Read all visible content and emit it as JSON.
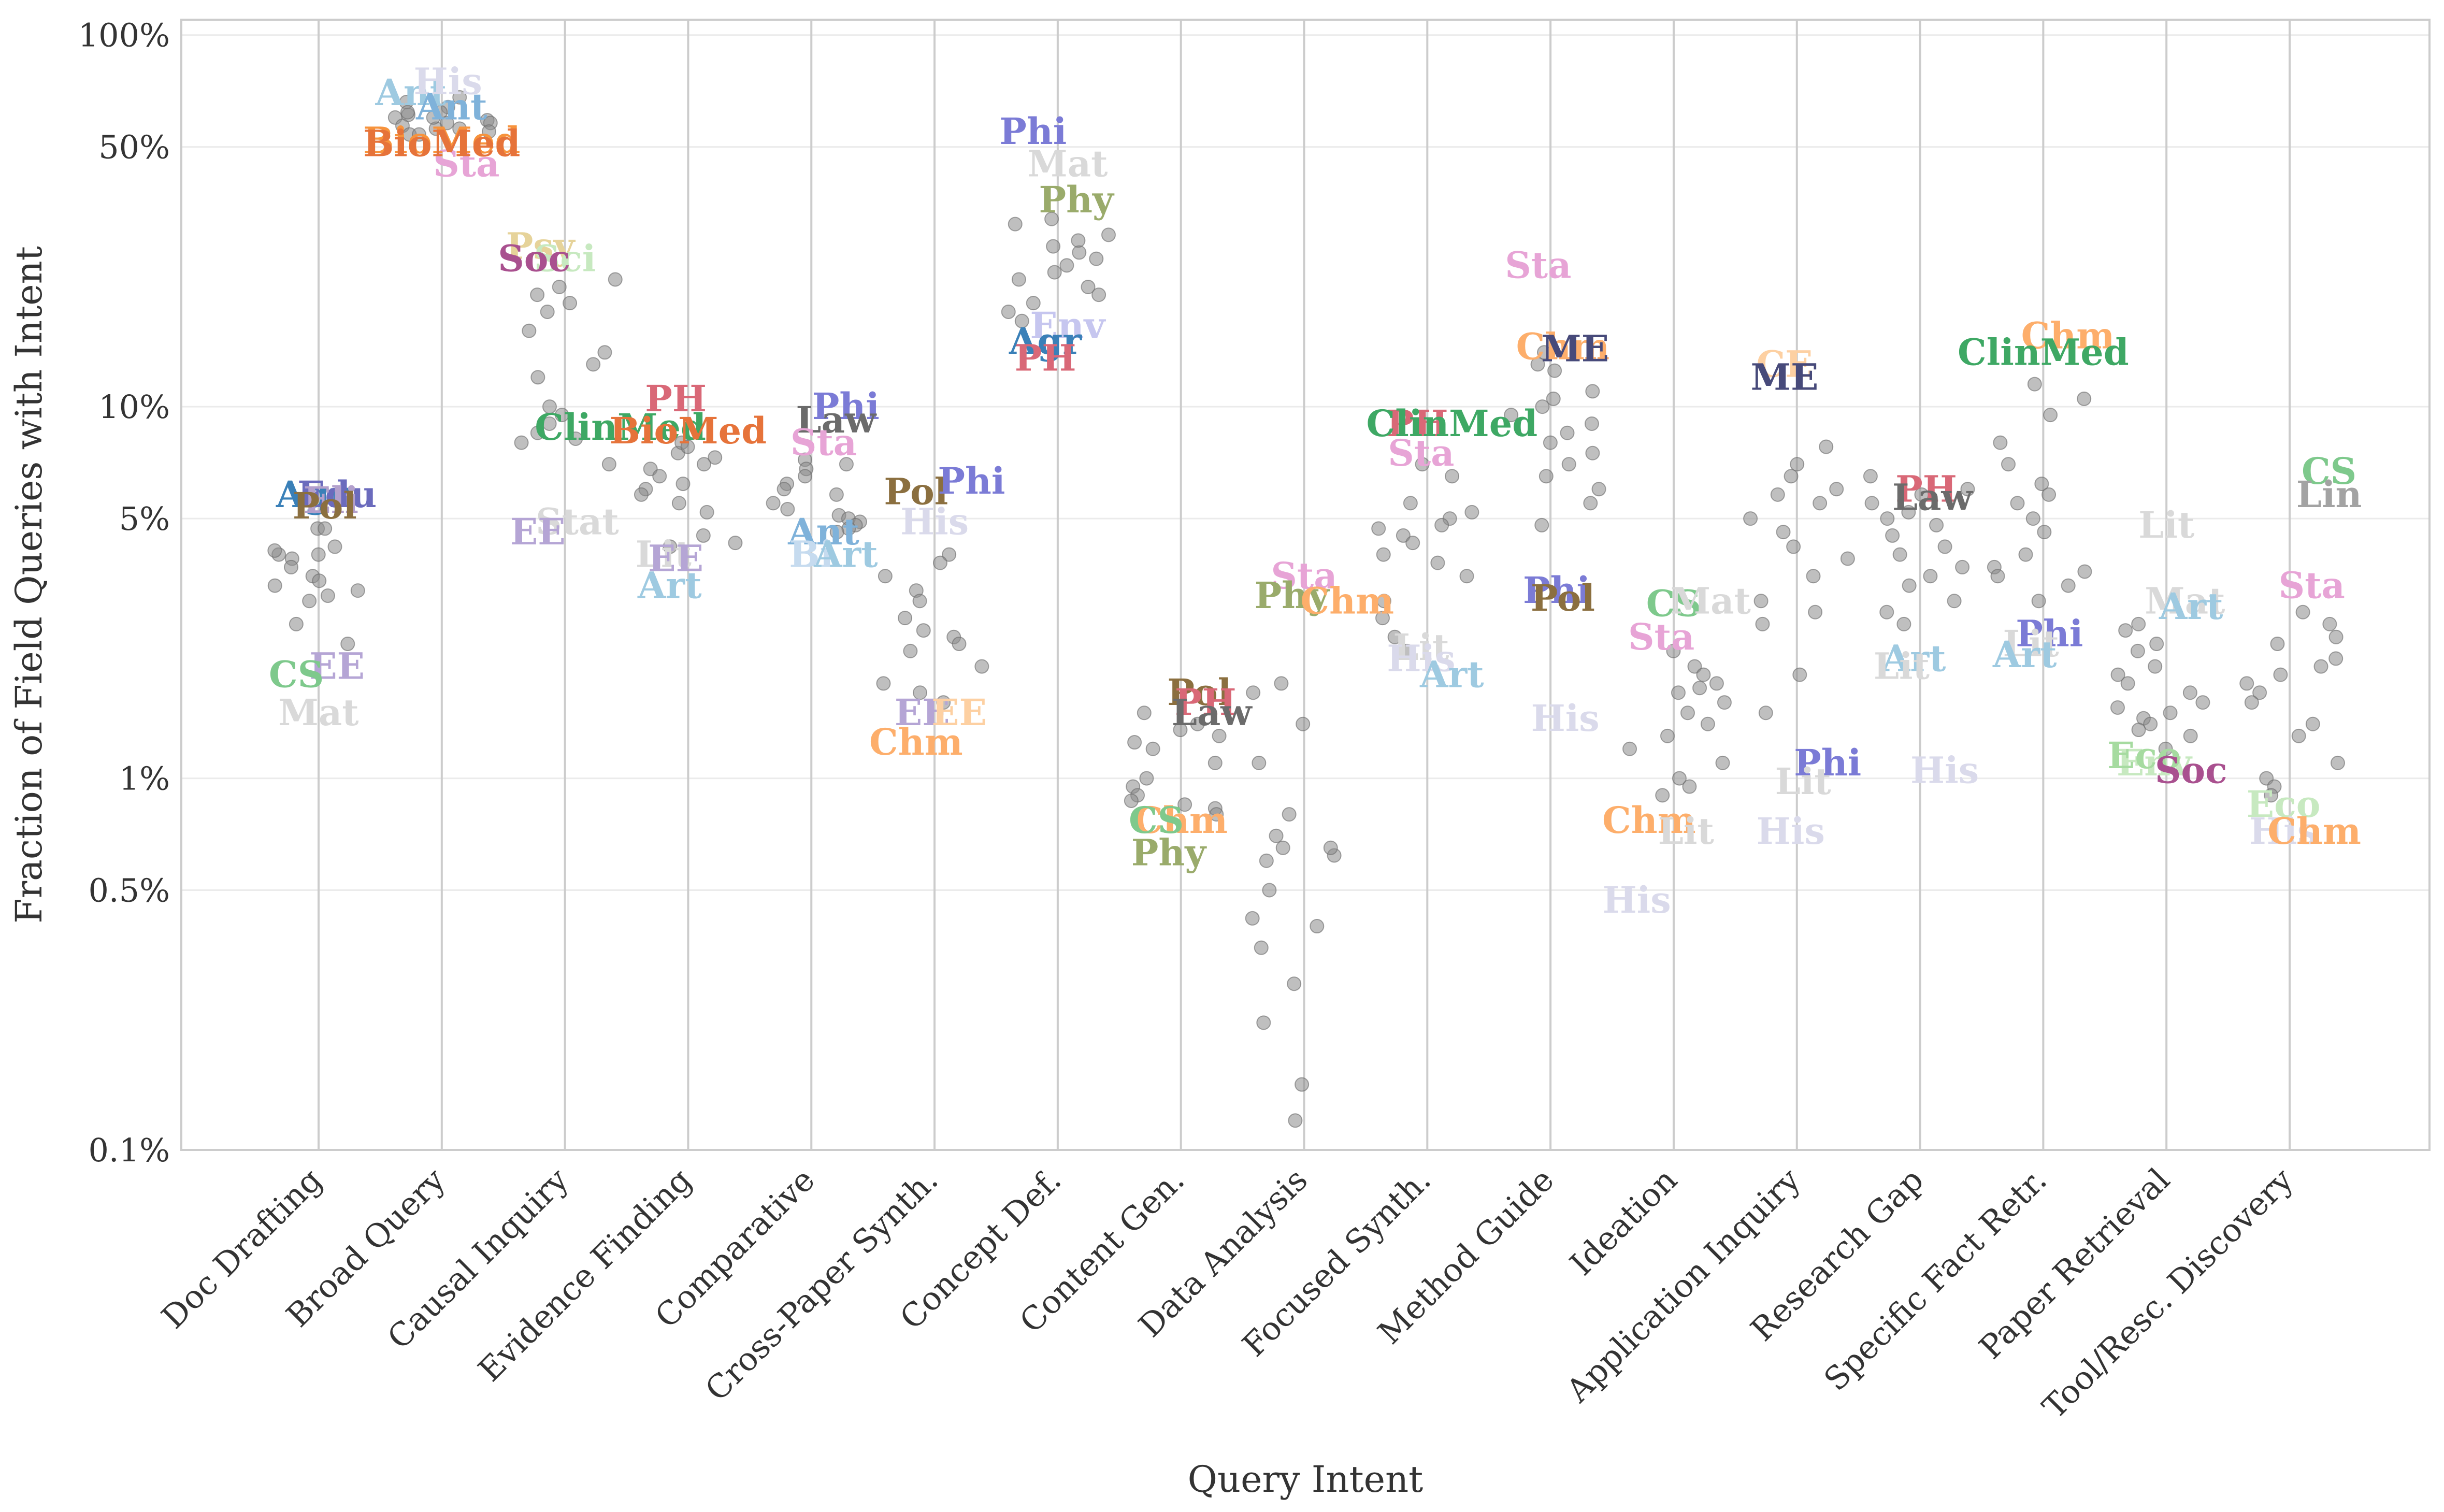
{
  "chart_data": {
    "type": "scatter",
    "title": "",
    "xlabel": "Query Intent",
    "ylabel": "Fraction of Field Queries with Intent",
    "yscale": "log",
    "ylim": [
      0.1,
      110
    ],
    "yticks": [
      0.1,
      0.5,
      1,
      5,
      10,
      50,
      100
    ],
    "ytick_labels": [
      "0.1%",
      "0.5%",
      "1%",
      "5%",
      "10%",
      "50%",
      "100%"
    ],
    "grid": "y",
    "categories": [
      "Doc Drafting",
      "Broad Query",
      "Causal Inquiry",
      "Evidence Finding",
      "Comparative",
      "Cross-Paper Synth.",
      "Concept Def.",
      "Content Gen.",
      "Data Analysis",
      "Focused Synth.",
      "Method Guide",
      "Ideation",
      "Application Inquiry",
      "Research Gap",
      "Specific Fact Retr.",
      "Paper Retrieval",
      "Tool/Resc. Discovery"
    ],
    "points": [
      [
        4.7,
        4.7,
        4.0,
        3.9,
        3.5,
        3.4,
        3.3,
        3.2,
        3.1,
        3.0,
        2.6,
        2.3,
        4.2,
        4.1,
        4.0,
        3.7
      ],
      [
        68,
        66,
        64,
        62,
        61,
        60,
        59,
        58,
        57,
        56,
        55,
        54,
        60,
        58,
        56,
        54,
        62
      ],
      [
        22,
        21,
        20,
        19,
        18,
        16,
        13,
        10,
        9,
        8,
        7,
        12,
        14,
        9.5,
        8.5,
        8.2
      ],
      [
        7.5,
        7.3,
        7.0,
        6.8,
        6.5,
        6.2,
        6.0,
        5.8,
        5.5,
        5.2,
        4.5,
        4.3,
        4.2,
        8.0,
        7.8
      ],
      [
        7.2,
        7.0,
        6.8,
        6.5,
        6.2,
        6.0,
        5.8,
        5.5,
        5.3,
        5.1,
        5.0,
        4.9,
        4.8,
        4.7,
        4.6
      ],
      [
        4.0,
        3.8,
        3.5,
        3.2,
        3.0,
        2.7,
        2.5,
        2.4,
        2.3,
        2.2,
        2.0,
        1.8,
        1.7,
        1.6
      ],
      [
        32,
        31,
        29,
        27,
        25,
        24,
        23,
        22,
        21,
        20,
        19,
        18,
        17,
        26,
        28
      ],
      [
        1.4,
        1.3,
        1.2,
        1.1,
        1.0,
        0.95,
        0.9,
        0.87,
        0.85,
        0.83,
        0.8,
        1.5,
        1.35,
        1.25
      ],
      [
        1.8,
        1.4,
        1.1,
        0.8,
        0.7,
        0.65,
        0.62,
        0.6,
        0.5,
        0.42,
        0.4,
        0.35,
        0.28,
        0.22,
        0.15,
        0.12,
        1.7,
        0.65
      ],
      [
        7.0,
        6.5,
        5.5,
        5.2,
        5.0,
        4.8,
        4.5,
        4.3,
        4.0,
        3.5,
        3.0,
        2.7,
        2.4,
        2.2,
        4.7,
        3.8
      ],
      [
        14,
        13,
        12.5,
        11,
        10.5,
        10,
        9.5,
        9,
        8.5,
        8,
        7.5,
        7,
        6.5,
        6,
        5.5,
        4.8
      ],
      [
        2.2,
        2.0,
        1.9,
        1.8,
        1.7,
        1.6,
        1.5,
        1.4,
        1.3,
        1.2,
        1.1,
        1.0,
        0.95,
        0.9,
        1.75
      ],
      [
        7.8,
        7.0,
        6.5,
        6.0,
        5.5,
        5.0,
        4.6,
        4.2,
        3.9,
        3.5,
        3.0,
        2.8,
        2.6,
        1.5,
        1.9,
        5.8
      ],
      [
        6.5,
        6.0,
        5.8,
        5.5,
        5.2,
        5.0,
        4.8,
        4.5,
        4.2,
        4.0,
        3.7,
        3.5,
        3.3,
        3.0,
        2.8,
        2.6
      ],
      [
        11.5,
        10.5,
        9.5,
        8.0,
        7.0,
        6.2,
        5.5,
        5.0,
        4.6,
        4.0,
        3.7,
        3.5,
        3.3,
        3.0,
        5.8,
        3.6
      ],
      [
        2.5,
        2.3,
        2.2,
        2.0,
        1.9,
        1.8,
        1.7,
        1.6,
        1.55,
        1.5,
        1.45,
        1.4,
        1.35,
        1.3,
        1.2,
        2.6
      ],
      [
        2.8,
        2.6,
        2.4,
        2.3,
        2.1,
        2.0,
        1.9,
        1.8,
        1.7,
        1.6,
        1.4,
        1.3,
        1.1,
        1.0,
        0.95,
        0.9
      ]
    ],
    "labels": [
      {
        "cat": 0,
        "dx": -0.05,
        "y": 5.8,
        "text": "Agr",
        "color": "#3a80b8"
      },
      {
        "cat": 0,
        "dx": 0.15,
        "y": 5.8,
        "text": "Edu",
        "color": "#6b6bbd"
      },
      {
        "cat": 0,
        "dx": 0.1,
        "y": 5.6,
        "text": "Eli",
        "color": "#b3a0cc"
      },
      {
        "cat": 0,
        "dx": 0.05,
        "y": 5.4,
        "text": "Pol",
        "color": "#8b6f3f"
      },
      {
        "cat": 0,
        "dx": 0.15,
        "y": 2.0,
        "text": "EE",
        "color": "#b5a5d5"
      },
      {
        "cat": 0,
        "dx": -0.18,
        "y": 1.9,
        "text": "CS",
        "color": "#7ec98c"
      },
      {
        "cat": 0,
        "dx": 0.0,
        "y": 1.5,
        "text": "Mat",
        "color": "#d9d9d9"
      },
      {
        "cat": 1,
        "dx": -0.25,
        "y": 70,
        "text": "Ant",
        "color": "#9ecae1"
      },
      {
        "cat": 1,
        "dx": 0.05,
        "y": 75,
        "text": "His",
        "color": "#dadaeb"
      },
      {
        "cat": 1,
        "dx": 0.08,
        "y": 64,
        "text": "Ant",
        "color": "#7fb2da"
      },
      {
        "cat": 1,
        "dx": 0.2,
        "y": 45,
        "text": "Sta",
        "color": "#e7a4d6"
      },
      {
        "cat": 1,
        "dx": 0.0,
        "y": 52,
        "text": "BioMed",
        "color": "#f7933c"
      },
      {
        "cat": 1,
        "dx": 0.0,
        "y": 51,
        "text": "BioMed",
        "color": "#e6733a"
      },
      {
        "cat": 2,
        "dx": -0.2,
        "y": 27,
        "text": "Psy",
        "color": "#e6d39a"
      },
      {
        "cat": 2,
        "dx": 0.0,
        "y": 25,
        "text": "Sci",
        "color": "#c7e9c0"
      },
      {
        "cat": 2,
        "dx": -0.25,
        "y": 25,
        "text": "Soc",
        "color": "#a9508f"
      },
      {
        "cat": 2,
        "dx": 0.1,
        "y": 4.9,
        "text": "Stat",
        "color": "#d9d9d9"
      },
      {
        "cat": 2,
        "dx": -0.22,
        "y": 4.6,
        "text": "EE",
        "color": "#b5a5d5"
      },
      {
        "cat": 3,
        "dx": -0.1,
        "y": 10.5,
        "text": "PH",
        "color": "#d96877"
      },
      {
        "cat": 3,
        "dx": -0.55,
        "y": 8.8,
        "text": "ClinMed",
        "color": "#3ea864"
      },
      {
        "cat": 3,
        "dx": 0.0,
        "y": 8.6,
        "text": "BioMed",
        "color": "#e6733a"
      },
      {
        "cat": 3,
        "dx": -0.2,
        "y": 4.0,
        "text": "Lit",
        "color": "#d9d9d9"
      },
      {
        "cat": 3,
        "dx": -0.1,
        "y": 3.9,
        "text": "EE",
        "color": "#b5a5d5"
      },
      {
        "cat": 3,
        "dx": -0.15,
        "y": 3.3,
        "text": "Art",
        "color": "#9ecae1"
      },
      {
        "cat": 4,
        "dx": 0.28,
        "y": 10.0,
        "text": "Phi",
        "color": "#7b7bd6"
      },
      {
        "cat": 4,
        "dx": 0.2,
        "y": 9.2,
        "text": "Law",
        "color": "#6b6b6b"
      },
      {
        "cat": 4,
        "dx": 0.1,
        "y": 8.0,
        "text": "Sta",
        "color": "#e7a4d6"
      },
      {
        "cat": 4,
        "dx": 0.1,
        "y": 4.6,
        "text": "Ant",
        "color": "#7fb2da"
      },
      {
        "cat": 4,
        "dx": 0.0,
        "y": 4.0,
        "text": "Bi",
        "color": "#c6dbef"
      },
      {
        "cat": 4,
        "dx": 0.28,
        "y": 4.0,
        "text": "Art",
        "color": "#9ecae1"
      },
      {
        "cat": 5,
        "dx": -0.15,
        "y": 5.9,
        "text": "Pol",
        "color": "#8b6f3f"
      },
      {
        "cat": 5,
        "dx": 0.3,
        "y": 6.3,
        "text": "Phi",
        "color": "#7b7bd6"
      },
      {
        "cat": 5,
        "dx": 0.0,
        "y": 4.9,
        "text": "His",
        "color": "#dadaeb"
      },
      {
        "cat": 5,
        "dx": -0.1,
        "y": 1.5,
        "text": "EE",
        "color": "#b5a5d5"
      },
      {
        "cat": 5,
        "dx": 0.2,
        "y": 1.5,
        "text": "EE",
        "color": "#fdd0a2"
      },
      {
        "cat": 5,
        "dx": -0.15,
        "y": 1.25,
        "text": "Chm",
        "color": "#fdae6b"
      },
      {
        "cat": 6,
        "dx": -0.2,
        "y": 55,
        "text": "Phi",
        "color": "#7b7bd6"
      },
      {
        "cat": 6,
        "dx": 0.08,
        "y": 45,
        "text": "Mat",
        "color": "#d9d9d9"
      },
      {
        "cat": 6,
        "dx": 0.15,
        "y": 36,
        "text": "Phy",
        "color": "#9aab6b"
      },
      {
        "cat": 6,
        "dx": 0.08,
        "y": 16.5,
        "text": "Env",
        "color": "#c6c6ef"
      },
      {
        "cat": 6,
        "dx": -0.1,
        "y": 15,
        "text": "Agr",
        "color": "#3a80b8"
      },
      {
        "cat": 6,
        "dx": -0.1,
        "y": 13.5,
        "text": "PH",
        "color": "#d96877"
      },
      {
        "cat": 7,
        "dx": 0.15,
        "y": 1.7,
        "text": "Pol",
        "color": "#8b6f3f"
      },
      {
        "cat": 7,
        "dx": 0.2,
        "y": 1.6,
        "text": "PH",
        "color": "#d96877"
      },
      {
        "cat": 7,
        "dx": 0.25,
        "y": 1.5,
        "text": "Law",
        "color": "#6b6b6b"
      },
      {
        "cat": 7,
        "dx": 0.0,
        "y": 0.77,
        "text": "Chm",
        "color": "#fdae6b"
      },
      {
        "cat": 7,
        "dx": -0.2,
        "y": 0.77,
        "text": "CS",
        "color": "#7ec98c"
      },
      {
        "cat": 7,
        "dx": -0.1,
        "y": 0.63,
        "text": "Phy",
        "color": "#9aab6b"
      },
      {
        "cat": 8,
        "dx": 0.0,
        "y": 3.5,
        "text": "Sta",
        "color": "#e7a4d6"
      },
      {
        "cat": 8,
        "dx": -0.1,
        "y": 3.1,
        "text": "Phy",
        "color": "#9aab6b"
      },
      {
        "cat": 8,
        "dx": 0.35,
        "y": 3.0,
        "text": "Chm",
        "color": "#fdae6b"
      },
      {
        "cat": 9,
        "dx": -0.08,
        "y": 9.0,
        "text": "PH",
        "color": "#d96877"
      },
      {
        "cat": 9,
        "dx": 0.2,
        "y": 9.0,
        "text": "ClinMed",
        "color": "#3ea864"
      },
      {
        "cat": 9,
        "dx": -0.05,
        "y": 7.5,
        "text": "Sta",
        "color": "#e7a4d6"
      },
      {
        "cat": 9,
        "dx": -0.05,
        "y": 2.25,
        "text": "Lit",
        "color": "#d9d9d9"
      },
      {
        "cat": 9,
        "dx": -0.05,
        "y": 2.1,
        "text": "His",
        "color": "#dadaeb"
      },
      {
        "cat": 9,
        "dx": 0.2,
        "y": 1.9,
        "text": "Art",
        "color": "#9ecae1"
      },
      {
        "cat": 10,
        "dx": -0.1,
        "y": 24,
        "text": "Sta",
        "color": "#e7a4d6"
      },
      {
        "cat": 10,
        "dx": 0.1,
        "y": 14.5,
        "text": "Chm",
        "color": "#fdae6b"
      },
      {
        "cat": 10,
        "dx": 0.2,
        "y": 14.3,
        "text": "ME",
        "color": "#474a7a"
      },
      {
        "cat": 10,
        "dx": 0.05,
        "y": 3.2,
        "text": "Phi",
        "color": "#7b7bd6"
      },
      {
        "cat": 10,
        "dx": 0.1,
        "y": 3.05,
        "text": "Pol",
        "color": "#8b6f3f"
      },
      {
        "cat": 10,
        "dx": 0.12,
        "y": 1.45,
        "text": "His",
        "color": "#dadaeb"
      },
      {
        "cat": 11,
        "dx": 0.0,
        "y": 2.95,
        "text": "CS",
        "color": "#7ec98c"
      },
      {
        "cat": 11,
        "dx": 0.3,
        "y": 3.0,
        "text": "Mat",
        "color": "#d9d9d9"
      },
      {
        "cat": 11,
        "dx": -0.1,
        "y": 2.4,
        "text": "Sta",
        "color": "#e7a4d6"
      },
      {
        "cat": 11,
        "dx": -0.2,
        "y": 0.77,
        "text": "Chm",
        "color": "#fdae6b"
      },
      {
        "cat": 11,
        "dx": 0.1,
        "y": 0.72,
        "text": "Lit",
        "color": "#d9d9d9"
      },
      {
        "cat": 11,
        "dx": -0.3,
        "y": 0.47,
        "text": "His",
        "color": "#dadaeb"
      },
      {
        "cat": 12,
        "dx": -0.1,
        "y": 13,
        "text": "CE",
        "color": "#fdd0a2"
      },
      {
        "cat": 12,
        "dx": -0.1,
        "y": 12,
        "text": "ME",
        "color": "#474a7a"
      },
      {
        "cat": 12,
        "dx": 0.25,
        "y": 1.1,
        "text": "Phi",
        "color": "#7b7bd6"
      },
      {
        "cat": 12,
        "dx": 0.05,
        "y": 0.98,
        "text": "Lit",
        "color": "#d9d9d9"
      },
      {
        "cat": 12,
        "dx": -0.05,
        "y": 0.72,
        "text": "His",
        "color": "#dadaeb"
      },
      {
        "cat": 13,
        "dx": 0.05,
        "y": 6.0,
        "text": "PH",
        "color": "#d96877"
      },
      {
        "cat": 13,
        "dx": 0.1,
        "y": 5.7,
        "text": "Law",
        "color": "#6b6b6b"
      },
      {
        "cat": 13,
        "dx": -0.05,
        "y": 2.1,
        "text": "Art",
        "color": "#9ecae1"
      },
      {
        "cat": 13,
        "dx": -0.15,
        "y": 2.0,
        "text": "Lit",
        "color": "#d9d9d9"
      },
      {
        "cat": 13,
        "dx": 0.2,
        "y": 1.05,
        "text": "His",
        "color": "#dadaeb"
      },
      {
        "cat": 14,
        "dx": 0.2,
        "y": 15.5,
        "text": "Chm",
        "color": "#fdae6b"
      },
      {
        "cat": 14,
        "dx": 0.0,
        "y": 14,
        "text": "ClinMed",
        "color": "#3ea864"
      },
      {
        "cat": 14,
        "dx": 0.05,
        "y": 2.45,
        "text": "Phi",
        "color": "#7b7bd6"
      },
      {
        "cat": 14,
        "dx": -0.1,
        "y": 2.3,
        "text": "Lit",
        "color": "#d9d9d9"
      },
      {
        "cat": 14,
        "dx": -0.15,
        "y": 2.15,
        "text": "Art",
        "color": "#9ecae1"
      },
      {
        "cat": 15,
        "dx": 0.0,
        "y": 4.8,
        "text": "Lit",
        "color": "#d9d9d9"
      },
      {
        "cat": 15,
        "dx": 0.15,
        "y": 3.0,
        "text": "Mat",
        "color": "#d9d9d9"
      },
      {
        "cat": 15,
        "dx": 0.2,
        "y": 2.9,
        "text": "Art",
        "color": "#9ecae1"
      },
      {
        "cat": 15,
        "dx": -0.1,
        "y": 1.1,
        "text": "Env",
        "color": "#c7e9c0"
      },
      {
        "cat": 15,
        "dx": -0.18,
        "y": 1.15,
        "text": "Eco",
        "color": "#a6dba0"
      },
      {
        "cat": 15,
        "dx": 0.2,
        "y": 1.05,
        "text": "Soc",
        "color": "#a9508f"
      },
      {
        "cat": 16,
        "dx": 0.32,
        "y": 6.7,
        "text": "CS",
        "color": "#7ec98c"
      },
      {
        "cat": 16,
        "dx": 0.32,
        "y": 5.8,
        "text": "Lin",
        "color": "#a3a3a3"
      },
      {
        "cat": 16,
        "dx": 0.18,
        "y": 3.3,
        "text": "Sta",
        "color": "#e7a4d6"
      },
      {
        "cat": 16,
        "dx": -0.05,
        "y": 0.85,
        "text": "Eco",
        "color": "#c7e9c0"
      },
      {
        "cat": 16,
        "dx": -0.05,
        "y": 0.72,
        "text": "His",
        "color": "#dadaeb"
      },
      {
        "cat": 16,
        "dx": 0.2,
        "y": 0.72,
        "text": "Chm",
        "color": "#fdae6b"
      }
    ]
  }
}
